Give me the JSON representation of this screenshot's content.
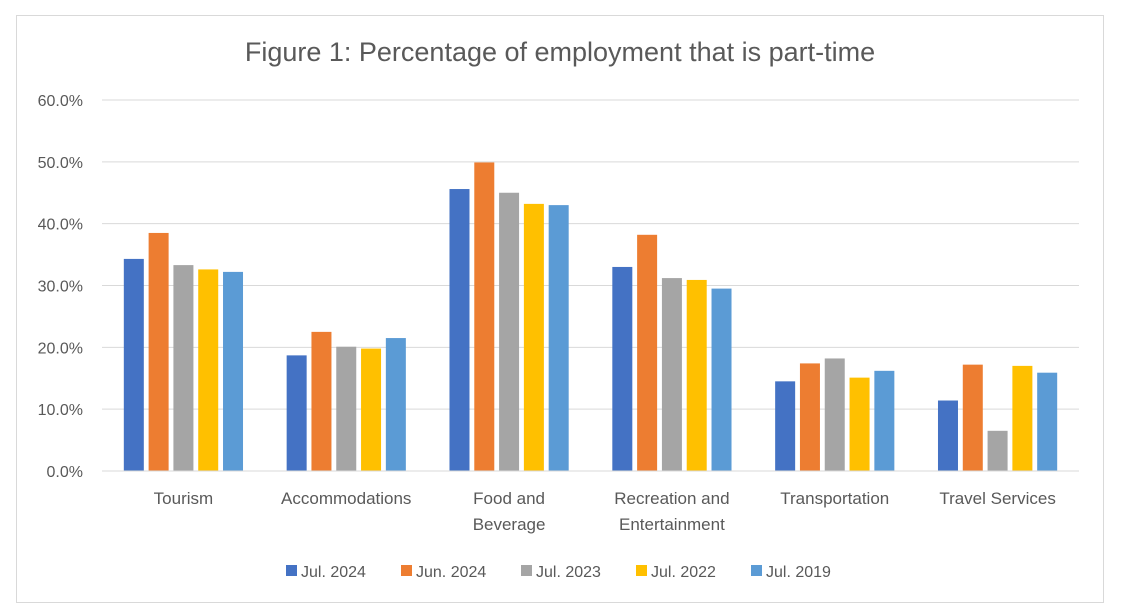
{
  "chart_data": {
    "type": "bar",
    "title": "Figure 1: Percentage of employment that is part-time",
    "xlabel": "",
    "ylabel": "",
    "ylim": [
      0,
      60
    ],
    "y_ticks": [
      "0.0%",
      "10.0%",
      "20.0%",
      "30.0%",
      "40.0%",
      "50.0%",
      "60.0%"
    ],
    "y_tick_values": [
      0,
      10,
      20,
      30,
      40,
      50,
      60
    ],
    "grid": true,
    "legend_position": "bottom",
    "categories": [
      [
        "Tourism"
      ],
      [
        "Accommodations"
      ],
      [
        "Food and",
        "Beverage"
      ],
      [
        "Recreation and",
        "Entertainment"
      ],
      [
        "Transportation"
      ],
      [
        "Travel Services"
      ]
    ],
    "series": [
      {
        "name": "Jul. 2024",
        "color": "#4472C4",
        "values": [
          34.3,
          18.7,
          45.6,
          33.0,
          14.5,
          11.4
        ]
      },
      {
        "name": "Jun. 2024",
        "color": "#ED7D31",
        "values": [
          38.5,
          22.5,
          49.9,
          38.2,
          17.4,
          17.2
        ]
      },
      {
        "name": "Jul. 2023",
        "color": "#A5A5A5",
        "values": [
          33.3,
          20.1,
          45.0,
          31.2,
          18.2,
          6.5
        ]
      },
      {
        "name": "Jul. 2022",
        "color": "#FFC000",
        "values": [
          32.6,
          19.8,
          43.2,
          30.9,
          15.1,
          17.0
        ]
      },
      {
        "name": "Jul. 2019",
        "color": "#5B9BD5",
        "values": [
          32.2,
          21.5,
          43.0,
          29.5,
          16.2,
          15.9
        ]
      }
    ]
  }
}
